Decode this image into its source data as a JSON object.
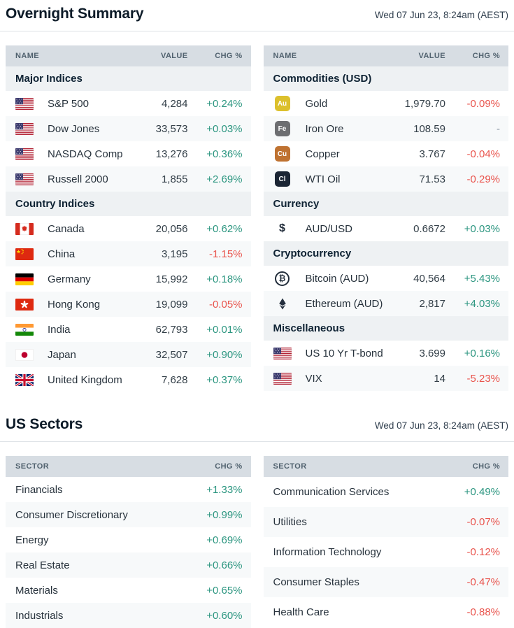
{
  "colors": {
    "positive": "#2c9680",
    "negative": "#e9544d",
    "neutral": "#8a97a3",
    "header_bar": "#d7dde3",
    "section_bar": "#eef1f3",
    "row_alternate": "#f7f9fa"
  },
  "overnight": {
    "title": "Overnight Summary",
    "timestamp": "Wed 07 Jun 23, 8:24am (AEST)",
    "columns": {
      "name": "NAME",
      "value": "VALUE",
      "chg": "CHG %"
    },
    "left_sections": [
      {
        "label": "Major Indices",
        "rows": [
          {
            "icon": "flag-us",
            "name": "S&P 500",
            "value": "4,284",
            "chg": "+0.24%"
          },
          {
            "icon": "flag-us",
            "name": "Dow Jones",
            "value": "33,573",
            "chg": "+0.03%"
          },
          {
            "icon": "flag-us",
            "name": "NASDAQ Comp",
            "value": "13,276",
            "chg": "+0.36%"
          },
          {
            "icon": "flag-us",
            "name": "Russell 2000",
            "value": "1,855",
            "chg": "+2.69%"
          }
        ]
      },
      {
        "label": "Country Indices",
        "rows": [
          {
            "icon": "flag-canada",
            "name": "Canada",
            "value": "20,056",
            "chg": "+0.62%"
          },
          {
            "icon": "flag-china",
            "name": "China",
            "value": "3,195",
            "chg": "-1.15%"
          },
          {
            "icon": "flag-germany",
            "name": "Germany",
            "value": "15,992",
            "chg": "+0.18%"
          },
          {
            "icon": "flag-hongkong",
            "name": "Hong Kong",
            "value": "19,099",
            "chg": "-0.05%"
          },
          {
            "icon": "flag-india",
            "name": "India",
            "value": "62,793",
            "chg": "+0.01%"
          },
          {
            "icon": "flag-japan",
            "name": "Japan",
            "value": "32,507",
            "chg": "+0.90%"
          },
          {
            "icon": "flag-uk",
            "name": "United Kingdom",
            "value": "7,628",
            "chg": "+0.37%"
          }
        ]
      }
    ],
    "right_sections": [
      {
        "label": "Commodities (USD)",
        "rows": [
          {
            "icon": "badge-au",
            "name": "Gold",
            "value": "1,979.70",
            "chg": "-0.09%"
          },
          {
            "icon": "badge-fe",
            "name": "Iron Ore",
            "value": "108.59",
            "chg": "-"
          },
          {
            "icon": "badge-cu",
            "name": "Copper",
            "value": "3.767",
            "chg": "-0.04%"
          },
          {
            "icon": "badge-cl",
            "name": "WTI Oil",
            "value": "71.53",
            "chg": "-0.29%"
          }
        ]
      },
      {
        "label": "Currency",
        "rows": [
          {
            "icon": "dollar",
            "name": "AUD/USD",
            "value": "0.6672",
            "chg": "+0.03%"
          }
        ]
      },
      {
        "label": "Cryptocurrency",
        "rows": [
          {
            "icon": "bitcoin",
            "name": "Bitcoin (AUD)",
            "value": "40,564",
            "chg": "+5.43%"
          },
          {
            "icon": "ethereum",
            "name": "Ethereum (AUD)",
            "value": "2,817",
            "chg": "+4.03%"
          }
        ]
      },
      {
        "label": "Miscellaneous",
        "rows": [
          {
            "icon": "flag-us",
            "name": "US 10 Yr T-bond",
            "value": "3.699",
            "chg": "+0.16%"
          },
          {
            "icon": "flag-us",
            "name": "VIX",
            "value": "14",
            "chg": "-5.23%"
          }
        ]
      }
    ]
  },
  "sectors": {
    "title": "US Sectors",
    "timestamp": "Wed 07 Jun 23, 8:24am (AEST)",
    "columns": {
      "sector": "SECTOR",
      "chg": "CHG %"
    },
    "left_rows": [
      {
        "name": "Financials",
        "chg": "+1.33%"
      },
      {
        "name": "Consumer Discretionary",
        "chg": "+0.99%"
      },
      {
        "name": "Energy",
        "chg": "+0.69%"
      },
      {
        "name": "Real Estate",
        "chg": "+0.66%"
      },
      {
        "name": "Materials",
        "chg": "+0.65%"
      },
      {
        "name": "Industrials",
        "chg": "+0.60%"
      }
    ],
    "right_rows": [
      {
        "name": "Communication Services",
        "chg": "+0.49%"
      },
      {
        "name": "Utilities",
        "chg": "-0.07%"
      },
      {
        "name": "Information Technology",
        "chg": "-0.12%"
      },
      {
        "name": "Consumer Staples",
        "chg": "-0.47%"
      },
      {
        "name": "Health Care",
        "chg": "-0.88%"
      }
    ]
  },
  "icons": {
    "badge-au": {
      "text": "Au",
      "bg": "#dcc02c"
    },
    "badge-fe": {
      "text": "Fe",
      "bg": "#6d6e71"
    },
    "badge-cu": {
      "text": "Cu",
      "bg": "#bf7231"
    },
    "badge-cl": {
      "text": "Cl",
      "bg": "#1b2534"
    },
    "dollar": {
      "text": "$"
    },
    "bitcoin": {
      "text": "₿"
    }
  }
}
